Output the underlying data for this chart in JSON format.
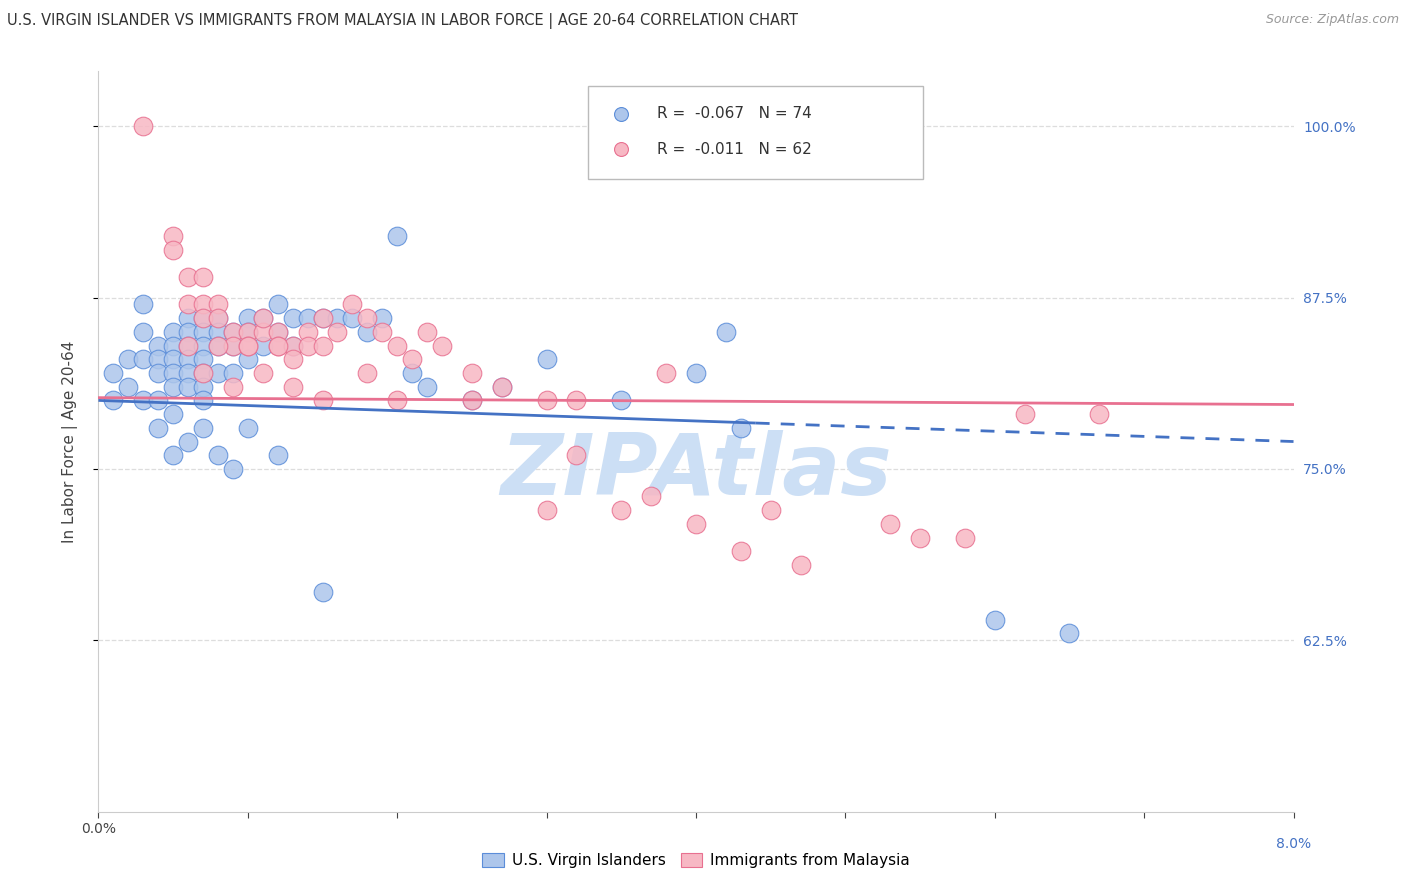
{
  "title": "U.S. VIRGIN ISLANDER VS IMMIGRANTS FROM MALAYSIA IN LABOR FORCE | AGE 20-64 CORRELATION CHART",
  "source": "Source: ZipAtlas.com",
  "ylabel": "In Labor Force | Age 20-64",
  "xlim": [
    0.0,
    0.08
  ],
  "ylim": [
    0.5,
    1.04
  ],
  "xtick_left_label": "0.0%",
  "xtick_right_label": "8.0%",
  "ytick_positions": [
    0.625,
    0.75,
    0.875,
    1.0
  ],
  "ytick_labels": [
    "62.5%",
    "75.0%",
    "87.5%",
    "100.0%"
  ],
  "blue_R": "-0.067",
  "blue_N": "74",
  "pink_R": "-0.011",
  "pink_N": "62",
  "blue_fill": "#adc6eb",
  "blue_edge": "#5b8dd9",
  "pink_fill": "#f7b8c4",
  "pink_edge": "#e87090",
  "blue_trend_color": "#4472c4",
  "pink_trend_color": "#e87090",
  "blue_trend_solid_end_x": 0.044,
  "blue_trend_y0": 0.8,
  "blue_trend_y1": 0.77,
  "pink_trend_y0": 0.802,
  "pink_trend_y1": 0.797,
  "watermark_text": "ZIPAtlas",
  "watermark_color": "#ccdff5",
  "background_color": "#ffffff",
  "grid_color": "#dddddd",
  "right_tick_color": "#4472c4",
  "title_color": "#333333",
  "legend_text_blue": "R =  -0.067   N = 74",
  "legend_text_pink": "R =  -0.011   N = 62",
  "blue_scatter_x": [
    0.001,
    0.001,
    0.002,
    0.002,
    0.003,
    0.003,
    0.003,
    0.003,
    0.004,
    0.004,
    0.004,
    0.004,
    0.004,
    0.005,
    0.005,
    0.005,
    0.005,
    0.005,
    0.005,
    0.006,
    0.006,
    0.006,
    0.006,
    0.006,
    0.006,
    0.007,
    0.007,
    0.007,
    0.007,
    0.007,
    0.007,
    0.007,
    0.008,
    0.008,
    0.008,
    0.008,
    0.009,
    0.009,
    0.009,
    0.01,
    0.01,
    0.01,
    0.011,
    0.011,
    0.012,
    0.012,
    0.013,
    0.013,
    0.014,
    0.015,
    0.016,
    0.017,
    0.018,
    0.019,
    0.02,
    0.021,
    0.022,
    0.025,
    0.027,
    0.03,
    0.035,
    0.04,
    0.042,
    0.043,
    0.005,
    0.006,
    0.007,
    0.008,
    0.009,
    0.01,
    0.012,
    0.015,
    0.06,
    0.065
  ],
  "blue_scatter_y": [
    0.82,
    0.8,
    0.83,
    0.81,
    0.87,
    0.85,
    0.83,
    0.8,
    0.84,
    0.83,
    0.82,
    0.8,
    0.78,
    0.85,
    0.84,
    0.83,
    0.82,
    0.81,
    0.79,
    0.86,
    0.85,
    0.84,
    0.83,
    0.82,
    0.81,
    0.86,
    0.85,
    0.84,
    0.83,
    0.82,
    0.81,
    0.8,
    0.86,
    0.85,
    0.84,
    0.82,
    0.85,
    0.84,
    0.82,
    0.86,
    0.85,
    0.83,
    0.86,
    0.84,
    0.87,
    0.85,
    0.86,
    0.84,
    0.86,
    0.86,
    0.86,
    0.86,
    0.85,
    0.86,
    0.92,
    0.82,
    0.81,
    0.8,
    0.81,
    0.83,
    0.8,
    0.82,
    0.85,
    0.78,
    0.76,
    0.77,
    0.78,
    0.76,
    0.75,
    0.78,
    0.76,
    0.66,
    0.64,
    0.63
  ],
  "pink_scatter_x": [
    0.003,
    0.005,
    0.005,
    0.006,
    0.006,
    0.007,
    0.007,
    0.007,
    0.008,
    0.008,
    0.009,
    0.009,
    0.01,
    0.01,
    0.011,
    0.011,
    0.012,
    0.012,
    0.013,
    0.013,
    0.014,
    0.014,
    0.015,
    0.016,
    0.017,
    0.018,
    0.019,
    0.02,
    0.021,
    0.022,
    0.023,
    0.025,
    0.027,
    0.03,
    0.032,
    0.037,
    0.043,
    0.047,
    0.053,
    0.058,
    0.062,
    0.067,
    0.006,
    0.008,
    0.01,
    0.012,
    0.015,
    0.02,
    0.03,
    0.04,
    0.007,
    0.009,
    0.011,
    0.013,
    0.015,
    0.018,
    0.025,
    0.035,
    0.045,
    0.055,
    0.032,
    0.038
  ],
  "pink_scatter_y": [
    1.0,
    0.92,
    0.91,
    0.89,
    0.87,
    0.89,
    0.87,
    0.86,
    0.87,
    0.86,
    0.85,
    0.84,
    0.85,
    0.84,
    0.85,
    0.86,
    0.85,
    0.84,
    0.84,
    0.83,
    0.85,
    0.84,
    0.86,
    0.85,
    0.87,
    0.86,
    0.85,
    0.84,
    0.83,
    0.85,
    0.84,
    0.82,
    0.81,
    0.8,
    0.76,
    0.73,
    0.69,
    0.68,
    0.71,
    0.7,
    0.79,
    0.79,
    0.84,
    0.84,
    0.84,
    0.84,
    0.84,
    0.8,
    0.72,
    0.71,
    0.82,
    0.81,
    0.82,
    0.81,
    0.8,
    0.82,
    0.8,
    0.72,
    0.72,
    0.7,
    0.8,
    0.82
  ]
}
